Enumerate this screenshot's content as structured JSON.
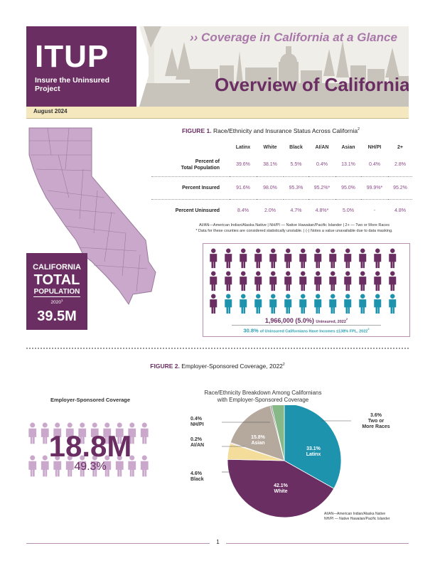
{
  "header": {
    "logo": "ITUP",
    "logo_subtitle": "Insure the Uninsured Project",
    "tagline": "›› Coverage in California at a Glance",
    "title": "Overview of California",
    "date": "August 2024"
  },
  "colors": {
    "purple": "#6b2e63",
    "light_purple": "#c9a8cc",
    "teal": "#1d93ad",
    "tan": "#b5a89d",
    "yellow": "#f4dd9a",
    "green": "#86b888",
    "gray": "#7c7c7c",
    "magenta": "#9b5fa0"
  },
  "figure1": {
    "label": "FIGURE 1.",
    "title": "Race/Ethnicity and Insurance Status Across California",
    "title_sup": "2",
    "columns": [
      "Latinx",
      "White",
      "Black",
      "AI/AN",
      "Asian",
      "NH/PI",
      "2+"
    ],
    "rows": [
      {
        "label_line1": "Percent of",
        "label_line2": "Total Population",
        "values": [
          "39.6%",
          "38.1%",
          "5.5%",
          "0.4%",
          "13.1%",
          "0.4%",
          "2.8%"
        ]
      },
      {
        "label_line1": "Percent Insured",
        "label_line2": "",
        "values": [
          "91.6%",
          "98.0%",
          "95.3%",
          "95.2%*",
          "95.0%",
          "99.9%*",
          "95.2%"
        ]
      },
      {
        "label_line1": "Percent Uninsured",
        "label_line2": "",
        "values": [
          "8.4%",
          "2.0%",
          "4.7%",
          "4.8%*",
          "5.0%",
          "-",
          "4.8%"
        ]
      }
    ],
    "notes_line1": "AI/AN—American Indian/Alaska Native | NH/PI — Native Hawaiian/Pacific Islander | 2+ — Two or More Races",
    "notes_line2": "* Data for these counties are considered statistically unstable. | (-) Notes a value unavailable due to data masking."
  },
  "population": {
    "line1": "CALIFORNIA",
    "line2": "TOTAL",
    "line3": "POPULATION",
    "line4": "2020",
    "line4_sup": "1",
    "value": "39.5M"
  },
  "uninsured": {
    "icons_total": 39,
    "icons_teal": 12,
    "count": "1,966,000 (5.0%)",
    "count_suffix": "Uninsured, 2022",
    "count_sup": "2",
    "income_pct": "30.8%",
    "income_text": "of Uninsured Californians Have Incomes ≤138% FPL, 2022",
    "income_sup": "2"
  },
  "figure2": {
    "label": "FIGURE 2.",
    "title": "Employer-Sponsored Coverage, 2022",
    "title_sup": "2",
    "emp_heading": "Employer-Sponsored Coverage",
    "emp_value": "18.8M",
    "emp_pct": "49.3%",
    "pie_heading_line1": "Race/Ethnicity Breakdown Among Californians",
    "pie_heading_line2": "with Employer-Sponsored Coverage",
    "pie_notes_line1": "AI/AN—American Indian/Alaska Native",
    "pie_notes_line2": "NH/PI — Native Hawaiian/Pacific Islander"
  },
  "chart_data": {
    "type": "pie",
    "title": "Race/Ethnicity Breakdown Among Californians with Employer-Sponsored Coverage",
    "categories": [
      "Latinx",
      "White",
      "Black",
      "AI/AN",
      "Asian",
      "NH/PI",
      "Two or More Races"
    ],
    "values": [
      33.1,
      42.1,
      4.6,
      0.2,
      15.8,
      0.4,
      3.6
    ],
    "value_labels": [
      "33.1%",
      "42.1%",
      "4.6%",
      "0.2%",
      "15.8%",
      "0.4%",
      "3.6%"
    ],
    "colors": [
      "#1d93ad",
      "#6b2e63",
      "#f4dd9a",
      "#9b5fa0",
      "#b5a89d",
      "#7c7c7c",
      "#86b888"
    ]
  },
  "pie_labels": {
    "latinx_pct": "33.1%",
    "latinx_name": "Latinx",
    "white_pct": "42.1%",
    "white_name": "White",
    "asian_pct": "15.8%",
    "asian_name": "Asian",
    "black_pct": "4.6%",
    "black_name": "Black",
    "aian_pct": "0.2%",
    "aian_name": "AI/AN",
    "nhpi_pct": "0.4%",
    "nhpi_name": "NH/PI",
    "multi_pct": "3.6%",
    "multi_name1": "Two or",
    "multi_name2": "More Races"
  },
  "footer": {
    "page_number": "1"
  }
}
